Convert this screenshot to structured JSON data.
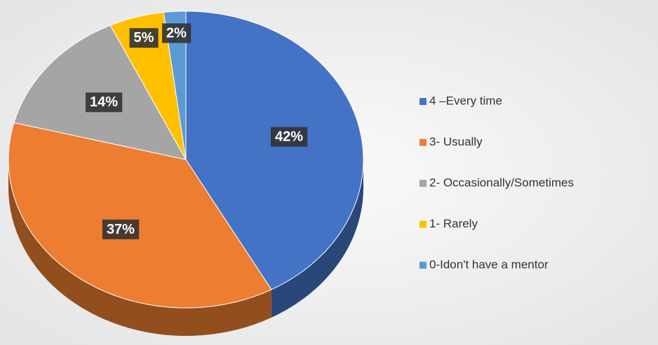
{
  "chart_data": {
    "type": "pie",
    "categories": [
      "4 –Every time",
      "3- Usually",
      "2- Occasionally/Sometimes",
      "1- Rarely",
      "0-Idon't have a mentor"
    ],
    "values": [
      42,
      37,
      14,
      5,
      2
    ],
    "value_labels": [
      "42%",
      "37%",
      "14%",
      "5%",
      "2%"
    ],
    "colors": [
      "#4472c4",
      "#ed7d31",
      "#a5a5a5",
      "#ffc000",
      "#5b9bd5"
    ],
    "legend": "right"
  }
}
